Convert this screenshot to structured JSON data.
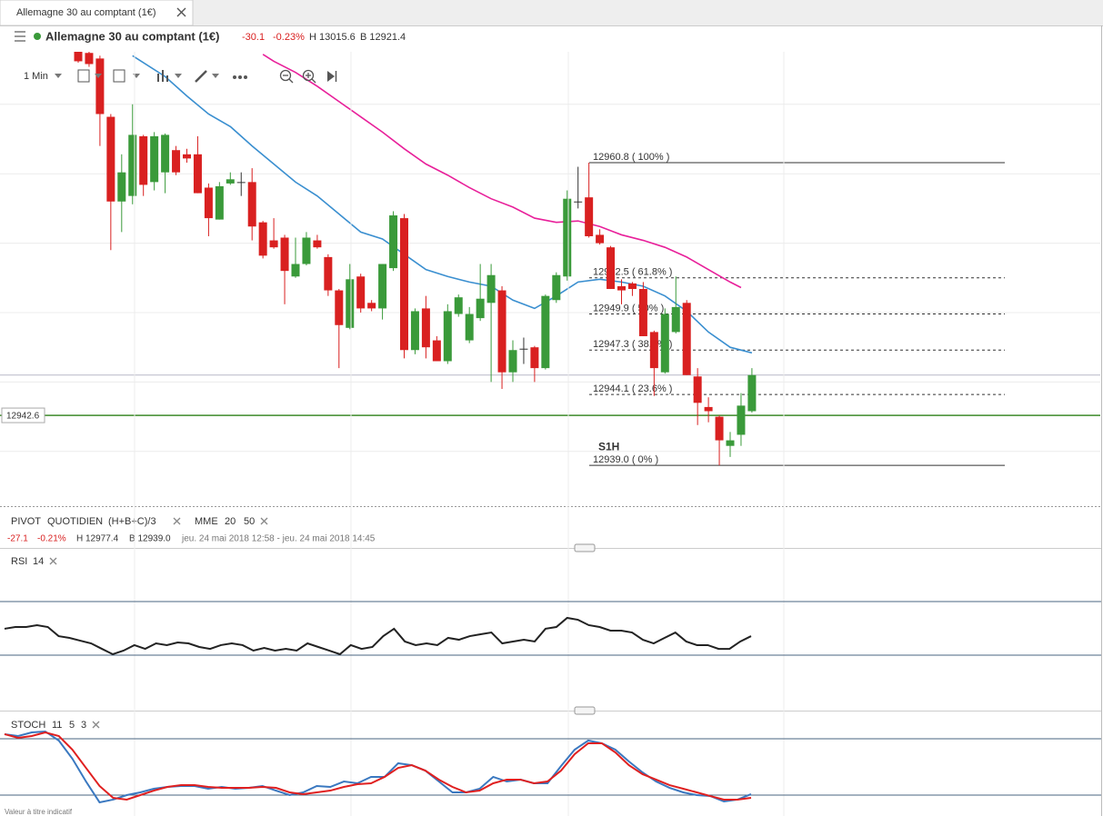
{
  "tab": {
    "title": "Allemagne 30 au comptant (1€)"
  },
  "header": {
    "name": "Allemagne 30 au comptant (1€)",
    "change": "-30.1",
    "change_pct": "-0.23%",
    "high": "H 13015.6",
    "low": "B 12921.4"
  },
  "toolbar": {
    "interval": "1 Min"
  },
  "price_chart": {
    "ylim": [
      12935,
      12970
    ],
    "grid": [
      12940,
      12945,
      12950,
      12955,
      12960,
      12965
    ],
    "up_color": "#3a9a3a",
    "down_color": "#d92020",
    "flat_color": "#333333",
    "ohlc": [
      [
        12968.9,
        12969.2,
        12968.0,
        12968.1
      ],
      [
        12968.7,
        12969.0,
        12967.7,
        12967.9
      ],
      [
        12968.3,
        12968.5,
        12962.0,
        12964.3
      ],
      [
        12964.1,
        12964.3,
        12954.5,
        12958.0
      ],
      [
        12958.0,
        12961.4,
        12955.8,
        12960.1
      ],
      [
        12958.4,
        12965.0,
        12957.8,
        12962.8
      ],
      [
        12962.7,
        12962.8,
        12958.4,
        12959.2
      ],
      [
        12959.4,
        12963.0,
        12958.8,
        12962.7
      ],
      [
        12960.1,
        12962.9,
        12958.6,
        12962.8
      ],
      [
        12961.7,
        12962.0,
        12959.9,
        12960.1
      ],
      [
        12961.4,
        12961.8,
        12960.8,
        12961.1
      ],
      [
        12961.4,
        12962.7,
        12958.6,
        12958.6
      ],
      [
        12959.0,
        12959.3,
        12955.5,
        12956.8
      ],
      [
        12956.7,
        12959.4,
        12956.7,
        12959.1
      ],
      [
        12959.3,
        12960.1,
        12959.2,
        12959.6
      ],
      [
        12959.4,
        12960.1,
        12958.4,
        12959.4
      ],
      [
        12959.4,
        12960.4,
        12955.2,
        12956.2
      ],
      [
        12956.5,
        12956.6,
        12953.9,
        12954.1
      ],
      [
        12955.2,
        12956.8,
        12954.6,
        12954.7
      ],
      [
        12955.4,
        12955.6,
        12950.6,
        12953.0
      ],
      [
        12952.6,
        12955.4,
        12952.5,
        12953.5
      ],
      [
        12953.5,
        12955.8,
        12953.4,
        12955.4
      ],
      [
        12955.2,
        12955.6,
        12954.6,
        12954.7
      ],
      [
        12954.0,
        12954.2,
        12951.2,
        12951.6
      ],
      [
        12951.6,
        12951.7,
        12946.0,
        12949.1
      ],
      [
        12948.9,
        12953.5,
        12948.8,
        12952.4
      ],
      [
        12952.6,
        12952.8,
        12950.0,
        12950.3
      ],
      [
        12950.7,
        12950.9,
        12950.1,
        12950.3
      ],
      [
        12950.3,
        12953.5,
        12949.5,
        12953.5
      ],
      [
        12953.2,
        12957.3,
        12953.0,
        12957.0
      ],
      [
        12956.8,
        12957.1,
        12946.7,
        12947.3
      ],
      [
        12947.3,
        12950.3,
        12947.0,
        12950.1
      ],
      [
        12950.3,
        12951.2,
        12946.7,
        12947.5
      ],
      [
        12948.0,
        12948.3,
        12946.5,
        12946.5
      ],
      [
        12946.5,
        12950.6,
        12946.3,
        12950.1
      ],
      [
        12949.9,
        12951.3,
        12949.7,
        12951.1
      ],
      [
        12948.0,
        12950.4,
        12947.8,
        12949.9
      ],
      [
        12949.6,
        12953.5,
        12949.4,
        12951.0
      ],
      [
        12950.7,
        12953.5,
        12945.0,
        12952.7
      ],
      [
        12951.6,
        12951.9,
        12944.5,
        12945.7
      ],
      [
        12945.7,
        12948.0,
        12945.0,
        12947.3
      ],
      [
        12947.4,
        12948.2,
        12946.3,
        12947.4
      ],
      [
        12947.5,
        12947.6,
        12945.0,
        12946.0
      ],
      [
        12946.0,
        12951.3,
        12945.9,
        12951.2
      ],
      [
        12950.9,
        12952.9,
        12950.7,
        12952.7
      ],
      [
        12952.6,
        12958.8,
        12952.3,
        12958.2
      ],
      [
        12958.0,
        12960.5,
        12957.5,
        12958.0
      ],
      [
        12958.3,
        12960.8,
        12955.4,
        12955.5
      ],
      [
        12955.6,
        12956.0,
        12954.9,
        12955.0
      ],
      [
        12954.7,
        12954.8,
        12951.7,
        12951.7
      ],
      [
        12951.9,
        12952.4,
        12950.6,
        12951.6
      ],
      [
        12952.1,
        12952.2,
        12951.2,
        12951.7
      ],
      [
        12951.7,
        12952.2,
        12948.3,
        12948.3
      ],
      [
        12948.6,
        12948.7,
        12944.0,
        12946.0
      ],
      [
        12945.7,
        12950.3,
        12945.6,
        12949.9
      ],
      [
        12948.6,
        12952.6,
        12948.5,
        12950.4
      ],
      [
        12950.7,
        12950.9,
        12945.5,
        12945.5
      ],
      [
        12945.4,
        12946.0,
        12941.9,
        12943.5
      ],
      [
        12943.2,
        12943.9,
        12942.1,
        12942.9
      ],
      [
        12942.5,
        12942.6,
        12939.0,
        12940.8
      ],
      [
        12940.4,
        12941.4,
        12939.6,
        12940.8
      ],
      [
        12941.2,
        12944.2,
        12940.4,
        12943.3
      ],
      [
        12942.9,
        12946.0,
        12942.8,
        12945.5
      ]
    ],
    "mme20": {
      "color": "#3a8fd0",
      "index": [
        5,
        8,
        10,
        12,
        14,
        16,
        18,
        20,
        22,
        24,
        26,
        28,
        30,
        32,
        34,
        36,
        38,
        40,
        42,
        44,
        46,
        48,
        50,
        52,
        54,
        56,
        58,
        60,
        62
      ],
      "values": [
        12968.5,
        12967.0,
        12965.6,
        12964.3,
        12963.4,
        12962.0,
        12960.7,
        12959.4,
        12958.4,
        12957.1,
        12955.8,
        12955.3,
        12954.2,
        12953.1,
        12952.6,
        12952.2,
        12951.9,
        12950.9,
        12950.3,
        12951.2,
        12952.2,
        12952.4,
        12952.2,
        12951.9,
        12951.2,
        12950.1,
        12948.6,
        12947.5,
        12947.1
      ]
    },
    "mme50": {
      "color": "#e8209a",
      "index": [
        17,
        18,
        20,
        22,
        24,
        26,
        28,
        30,
        32,
        34,
        36,
        38,
        40,
        42,
        44,
        46,
        48,
        50,
        52,
        54,
        56,
        58,
        60,
        61
      ],
      "values": [
        12968.6,
        12968.1,
        12967.3,
        12966.3,
        12965.2,
        12964.1,
        12963.0,
        12961.8,
        12960.7,
        12959.9,
        12959.0,
        12958.2,
        12957.6,
        12956.8,
        12956.5,
        12956.6,
        12956.2,
        12955.6,
        12955.2,
        12954.7,
        12954.0,
        12953.1,
        12952.2,
        12951.8
      ]
    },
    "fib": [
      {
        "value": 12960.8,
        "label": "12960.8 ( 100% )"
      },
      {
        "value": 12952.5,
        "label": "12952.5 ( 61.8% )"
      },
      {
        "value": 12949.9,
        "label": "12949.9 ( 50% )"
      },
      {
        "value": 12947.3,
        "label": "12947.3 ( 38.2% )"
      },
      {
        "value": 12944.1,
        "label": "12944.1 ( 23.6% )"
      },
      {
        "value": 12939.0,
        "label": "12939.0 ( 0% )"
      }
    ],
    "pivot_label": "S1H",
    "last_line": 12945.5,
    "current_price": {
      "value": 12942.6,
      "label": "12942.6",
      "color": "#3d8a2a"
    }
  },
  "legend": {
    "pivot": "PIVOT",
    "pivot_period": "QUOTIDIEN",
    "pivot_formula": "(H+B+C)/3",
    "mme": "MME",
    "mme_fast": "20",
    "mme_slow": "50"
  },
  "info": {
    "change": "-27.1",
    "change_pct": "-0.21%",
    "high": "H 12977.4",
    "low": "B 12939.0",
    "range": "jeu. 24 mai 2018 12:58 - jeu. 24 mai 2018 14:45"
  },
  "rsi": {
    "label": "RSI",
    "period": "14",
    "ylim": [
      0,
      100
    ],
    "levels": [
      70,
      30
    ],
    "color": "#222222",
    "values": [
      49.7,
      51.0,
      51.0,
      52.4,
      51.0,
      44.2,
      42.9,
      40.8,
      38.8,
      34.7,
      30.7,
      33.4,
      37.5,
      34.7,
      38.8,
      37.5,
      39.5,
      38.8,
      36.1,
      34.7,
      37.5,
      38.8,
      37.5,
      33.4,
      35.4,
      33.4,
      34.7,
      33.4,
      38.8,
      36.1,
      33.4,
      30.7,
      37.5,
      34.7,
      36.1,
      44.2,
      49.7,
      40.2,
      37.5,
      38.8,
      37.5,
      42.9,
      41.5,
      44.2,
      45.6,
      46.9,
      38.8,
      40.2,
      41.5,
      40.2,
      49.7,
      51.0,
      57.8,
      56.4,
      52.4,
      51.0,
      48.3,
      48.3,
      46.9,
      41.5,
      38.8,
      42.9,
      46.9,
      40.2,
      37.5,
      37.5,
      34.7,
      34.7,
      40.2,
      44.2
    ]
  },
  "stoch": {
    "label": "STOCH",
    "params": [
      "11",
      "5",
      "3"
    ],
    "ylim": [
      0,
      100
    ],
    "levels": [
      80,
      20
    ],
    "k_color": "#3a78c0",
    "d_color": "#e02020",
    "k": [
      84.9,
      82.9,
      86.8,
      87.8,
      78.1,
      58.7,
      34.5,
      12.3,
      15.2,
      20.0,
      22.9,
      26.8,
      28.7,
      29.7,
      29.7,
      26.8,
      28.7,
      26.8,
      27.7,
      29.7,
      24.8,
      20.0,
      22.9,
      29.7,
      28.7,
      34.5,
      32.6,
      39.4,
      39.4,
      53.9,
      51.9,
      46.1,
      34.5,
      22.9,
      22.9,
      26.8,
      39.4,
      34.5,
      36.5,
      32.6,
      32.6,
      51.0,
      68.4,
      78.1,
      75.2,
      68.4,
      55.8,
      44.2,
      34.5,
      27.7,
      22.9,
      20.0,
      19.0,
      13.2,
      15.2,
      21.0
    ],
    "d": [
      84.9,
      81.0,
      82.9,
      86.8,
      82.9,
      68.4,
      49.0,
      29.7,
      17.1,
      15.2,
      20.0,
      24.8,
      28.7,
      30.6,
      30.6,
      28.7,
      27.7,
      27.7,
      27.7,
      28.7,
      27.7,
      22.9,
      21.0,
      22.9,
      24.8,
      28.7,
      31.6,
      32.6,
      39.4,
      49.0,
      51.9,
      46.1,
      36.5,
      28.7,
      22.9,
      24.8,
      32.6,
      36.5,
      36.5,
      32.6,
      34.5,
      46.1,
      63.6,
      75.2,
      75.2,
      65.5,
      51.9,
      42.3,
      36.5,
      30.6,
      26.8,
      22.9,
      19.0,
      15.2,
      15.2,
      17.1
    ]
  },
  "footer_note": "Valeur à titre indicatif"
}
